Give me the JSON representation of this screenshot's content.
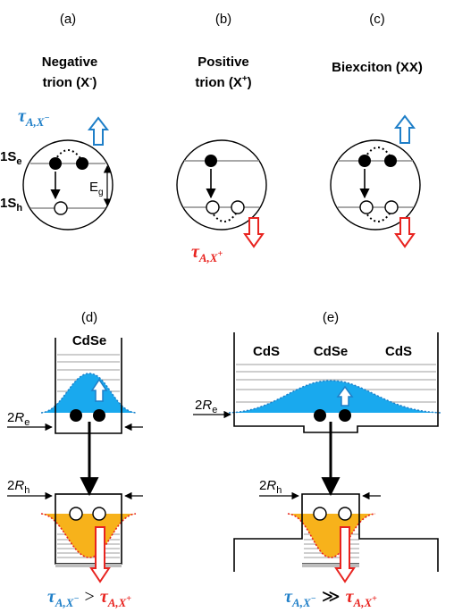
{
  "panels": [
    {
      "label": "(a)",
      "line1": "Negative",
      "line2": "trion (X",
      "line2_sup": "-",
      "line2_end": ")",
      "tau": {
        "symbol": "τ",
        "sub": "A,X",
        "sup": "−"
      },
      "levels": [
        {
          "main": "1S",
          "sub": "e"
        },
        {
          "main": "1S",
          "sub": "h"
        }
      ],
      "gap": {
        "main": "E",
        "sub": "g"
      }
    },
    {
      "label": "(b)",
      "line1": "Positive",
      "line2": "trion (X",
      "line2_sup": "+",
      "line2_end": ")",
      "tau": {
        "symbol": "τ",
        "sub": "A,X",
        "sup": "+"
      }
    },
    {
      "label": "(c)",
      "line1": "Biexciton (XX)"
    },
    {
      "label": "(d)",
      "materials": [
        "CdSe"
      ],
      "re": {
        "main": "2",
        "italic": "R",
        "sub": "e"
      },
      "rh": {
        "main": "2",
        "italic": "R",
        "sub": "h"
      },
      "compare": {
        "left": {
          "symbol": "τ",
          "sub": "A,X",
          "sup": "−"
        },
        "relation": ">",
        "right": {
          "symbol": "τ",
          "sub": "A,X",
          "sup": "+"
        }
      }
    },
    {
      "label": "(e)",
      "materials": [
        "CdS",
        "CdSe",
        "CdS"
      ],
      "re": {
        "main": "2",
        "italic": "R",
        "sub": "e"
      },
      "rh": {
        "main": "2",
        "italic": "R",
        "sub": "h"
      },
      "compare": {
        "left": {
          "symbol": "τ",
          "sub": "A,X",
          "sup": "−"
        },
        "relation": "≫",
        "right": {
          "symbol": "τ",
          "sub": "A,X",
          "sup": "+"
        }
      }
    }
  ]
}
